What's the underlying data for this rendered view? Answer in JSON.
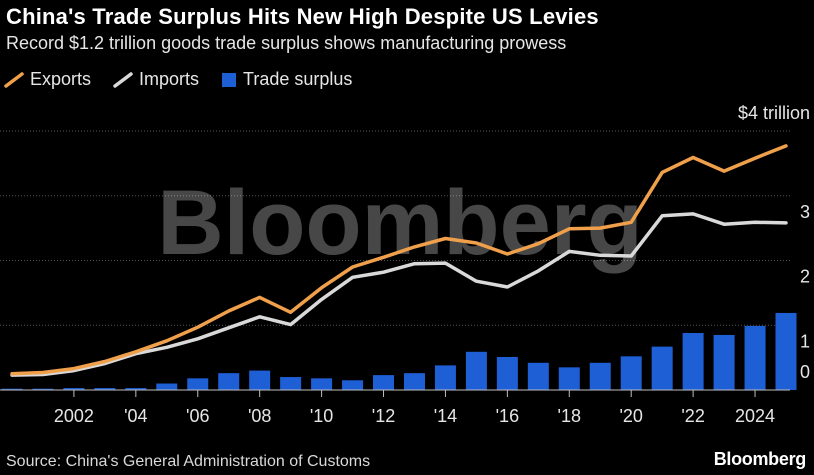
{
  "title": "China's Trade Surplus Hits New High Despite US Levies",
  "subtitle": "Record $1.2 trillion goods trade surplus shows manufacturing prowess",
  "legend": {
    "exports": "Exports",
    "imports": "Imports",
    "surplus": "Trade surplus"
  },
  "watermark": "Bloomberg",
  "source": "Source: China's General Administration of Customs",
  "brand": "Bloomberg",
  "colors": {
    "exports": "#f0a04b",
    "imports": "#d9d9d9",
    "surplus": "#1f5fd6",
    "grid": "#555555"
  },
  "chart_data": {
    "type": "bar+line",
    "title": "China's Trade Surplus Hits New High Despite US Levies",
    "units": "trillion USD",
    "ylim": [
      0,
      4
    ],
    "y_ticks": [
      {
        "value": 4,
        "label": "$4 trillion"
      },
      {
        "value": 3,
        "label": "3"
      },
      {
        "value": 2,
        "label": "2"
      },
      {
        "value": 1,
        "label": "1"
      },
      {
        "value": 0,
        "label": "0"
      }
    ],
    "x_ticks": [
      {
        "year": 2002,
        "label": "2002"
      },
      {
        "year": 2004,
        "label": "'04"
      },
      {
        "year": 2006,
        "label": "'06"
      },
      {
        "year": 2008,
        "label": "'08"
      },
      {
        "year": 2010,
        "label": "'10"
      },
      {
        "year": 2012,
        "label": "'12"
      },
      {
        "year": 2014,
        "label": "'14"
      },
      {
        "year": 2016,
        "label": "'16"
      },
      {
        "year": 2018,
        "label": "'18"
      },
      {
        "year": 2020,
        "label": "'20"
      },
      {
        "year": 2022,
        "label": "'22"
      },
      {
        "year": 2024,
        "label": "2024"
      }
    ],
    "years": [
      2000,
      2001,
      2002,
      2003,
      2004,
      2005,
      2006,
      2007,
      2008,
      2009,
      2010,
      2011,
      2012,
      2013,
      2014,
      2015,
      2016,
      2017,
      2018,
      2019,
      2020,
      2021,
      2022,
      2023,
      2024,
      2025
    ],
    "series": [
      {
        "name": "Exports",
        "type": "line",
        "values": [
          0.25,
          0.27,
          0.33,
          0.44,
          0.59,
          0.76,
          0.97,
          1.22,
          1.43,
          1.2,
          1.58,
          1.9,
          2.05,
          2.21,
          2.34,
          2.27,
          2.1,
          2.26,
          2.49,
          2.5,
          2.59,
          3.36,
          3.59,
          3.38,
          3.58,
          3.77
        ]
      },
      {
        "name": "Imports",
        "type": "line",
        "values": [
          0.23,
          0.24,
          0.3,
          0.41,
          0.56,
          0.66,
          0.79,
          0.96,
          1.13,
          1.01,
          1.4,
          1.74,
          1.82,
          1.95,
          1.96,
          1.68,
          1.59,
          1.84,
          2.14,
          2.08,
          2.07,
          2.69,
          2.72,
          2.56,
          2.59,
          2.58
        ]
      },
      {
        "name": "Trade surplus",
        "type": "bar",
        "values": [
          0.02,
          0.02,
          0.03,
          0.03,
          0.03,
          0.1,
          0.18,
          0.26,
          0.3,
          0.2,
          0.18,
          0.15,
          0.23,
          0.26,
          0.38,
          0.59,
          0.51,
          0.42,
          0.35,
          0.42,
          0.52,
          0.67,
          0.88,
          0.85,
          0.99,
          1.19
        ]
      }
    ]
  }
}
